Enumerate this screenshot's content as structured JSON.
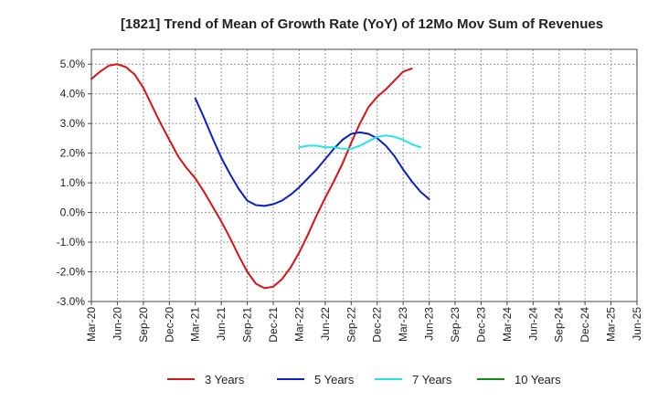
{
  "chart_data": {
    "type": "line",
    "title": "[1821]  Trend of Mean of Growth Rate (YoY) of 12Mo Mov Sum of Revenues",
    "xlabel": "",
    "ylabel": "",
    "ylim": [
      -3.0,
      5.5
    ],
    "y_ticks": [
      -3.0,
      -2.0,
      -1.0,
      0.0,
      1.0,
      2.0,
      3.0,
      4.0,
      5.0
    ],
    "y_tick_labels": [
      "-3.0%",
      "-2.0%",
      "-1.0%",
      "0.0%",
      "1.0%",
      "2.0%",
      "3.0%",
      "4.0%",
      "5.0%"
    ],
    "x_tick_labels": [
      "Mar-20",
      "Jun-20",
      "Sep-20",
      "Dec-20",
      "Mar-21",
      "Jun-21",
      "Sep-21",
      "Dec-21",
      "Mar-22",
      "Jun-22",
      "Sep-22",
      "Dec-22",
      "Mar-23",
      "Jun-23",
      "Sep-23",
      "Dec-23",
      "Mar-24",
      "Jun-24",
      "Sep-24",
      "Dec-24",
      "Mar-25",
      "Jun-25"
    ],
    "grid": true,
    "legend_position": "bottom",
    "series": [
      {
        "name": "3 Years",
        "color": "#dd1111",
        "start_index": 0,
        "values": [
          4.5,
          4.75,
          4.95,
          5.0,
          4.9,
          4.65,
          4.2,
          3.6,
          3.0,
          2.45,
          1.9,
          1.5,
          1.15,
          0.7,
          0.2,
          -0.3,
          -0.85,
          -1.45,
          -2.0,
          -2.4,
          -2.55,
          -2.5,
          -2.25,
          -1.85,
          -1.35,
          -0.75,
          -0.1,
          0.5,
          1.05,
          1.65,
          2.35,
          3.0,
          3.55,
          3.9,
          4.15,
          4.45,
          4.75,
          4.85
        ]
      },
      {
        "name": "5 Years",
        "color": "#0a1ecc",
        "start_index": 12,
        "values": [
          3.85,
          3.2,
          2.5,
          1.85,
          1.3,
          0.8,
          0.4,
          0.25,
          0.22,
          0.28,
          0.4,
          0.6,
          0.85,
          1.15,
          1.45,
          1.8,
          2.15,
          2.45,
          2.65,
          2.7,
          2.65,
          2.5,
          2.25,
          1.9,
          1.45,
          1.05,
          0.7,
          0.45
        ]
      },
      {
        "name": "7 Years",
        "color": "#22e5ea",
        "start_index": 24,
        "values": [
          2.2,
          2.25,
          2.25,
          2.2,
          2.2,
          2.15,
          2.15,
          2.25,
          2.4,
          2.55,
          2.6,
          2.55,
          2.45,
          2.3,
          2.2
        ]
      },
      {
        "name": "10 Years",
        "color": "#138a13",
        "start_index": 0,
        "values": []
      }
    ]
  }
}
